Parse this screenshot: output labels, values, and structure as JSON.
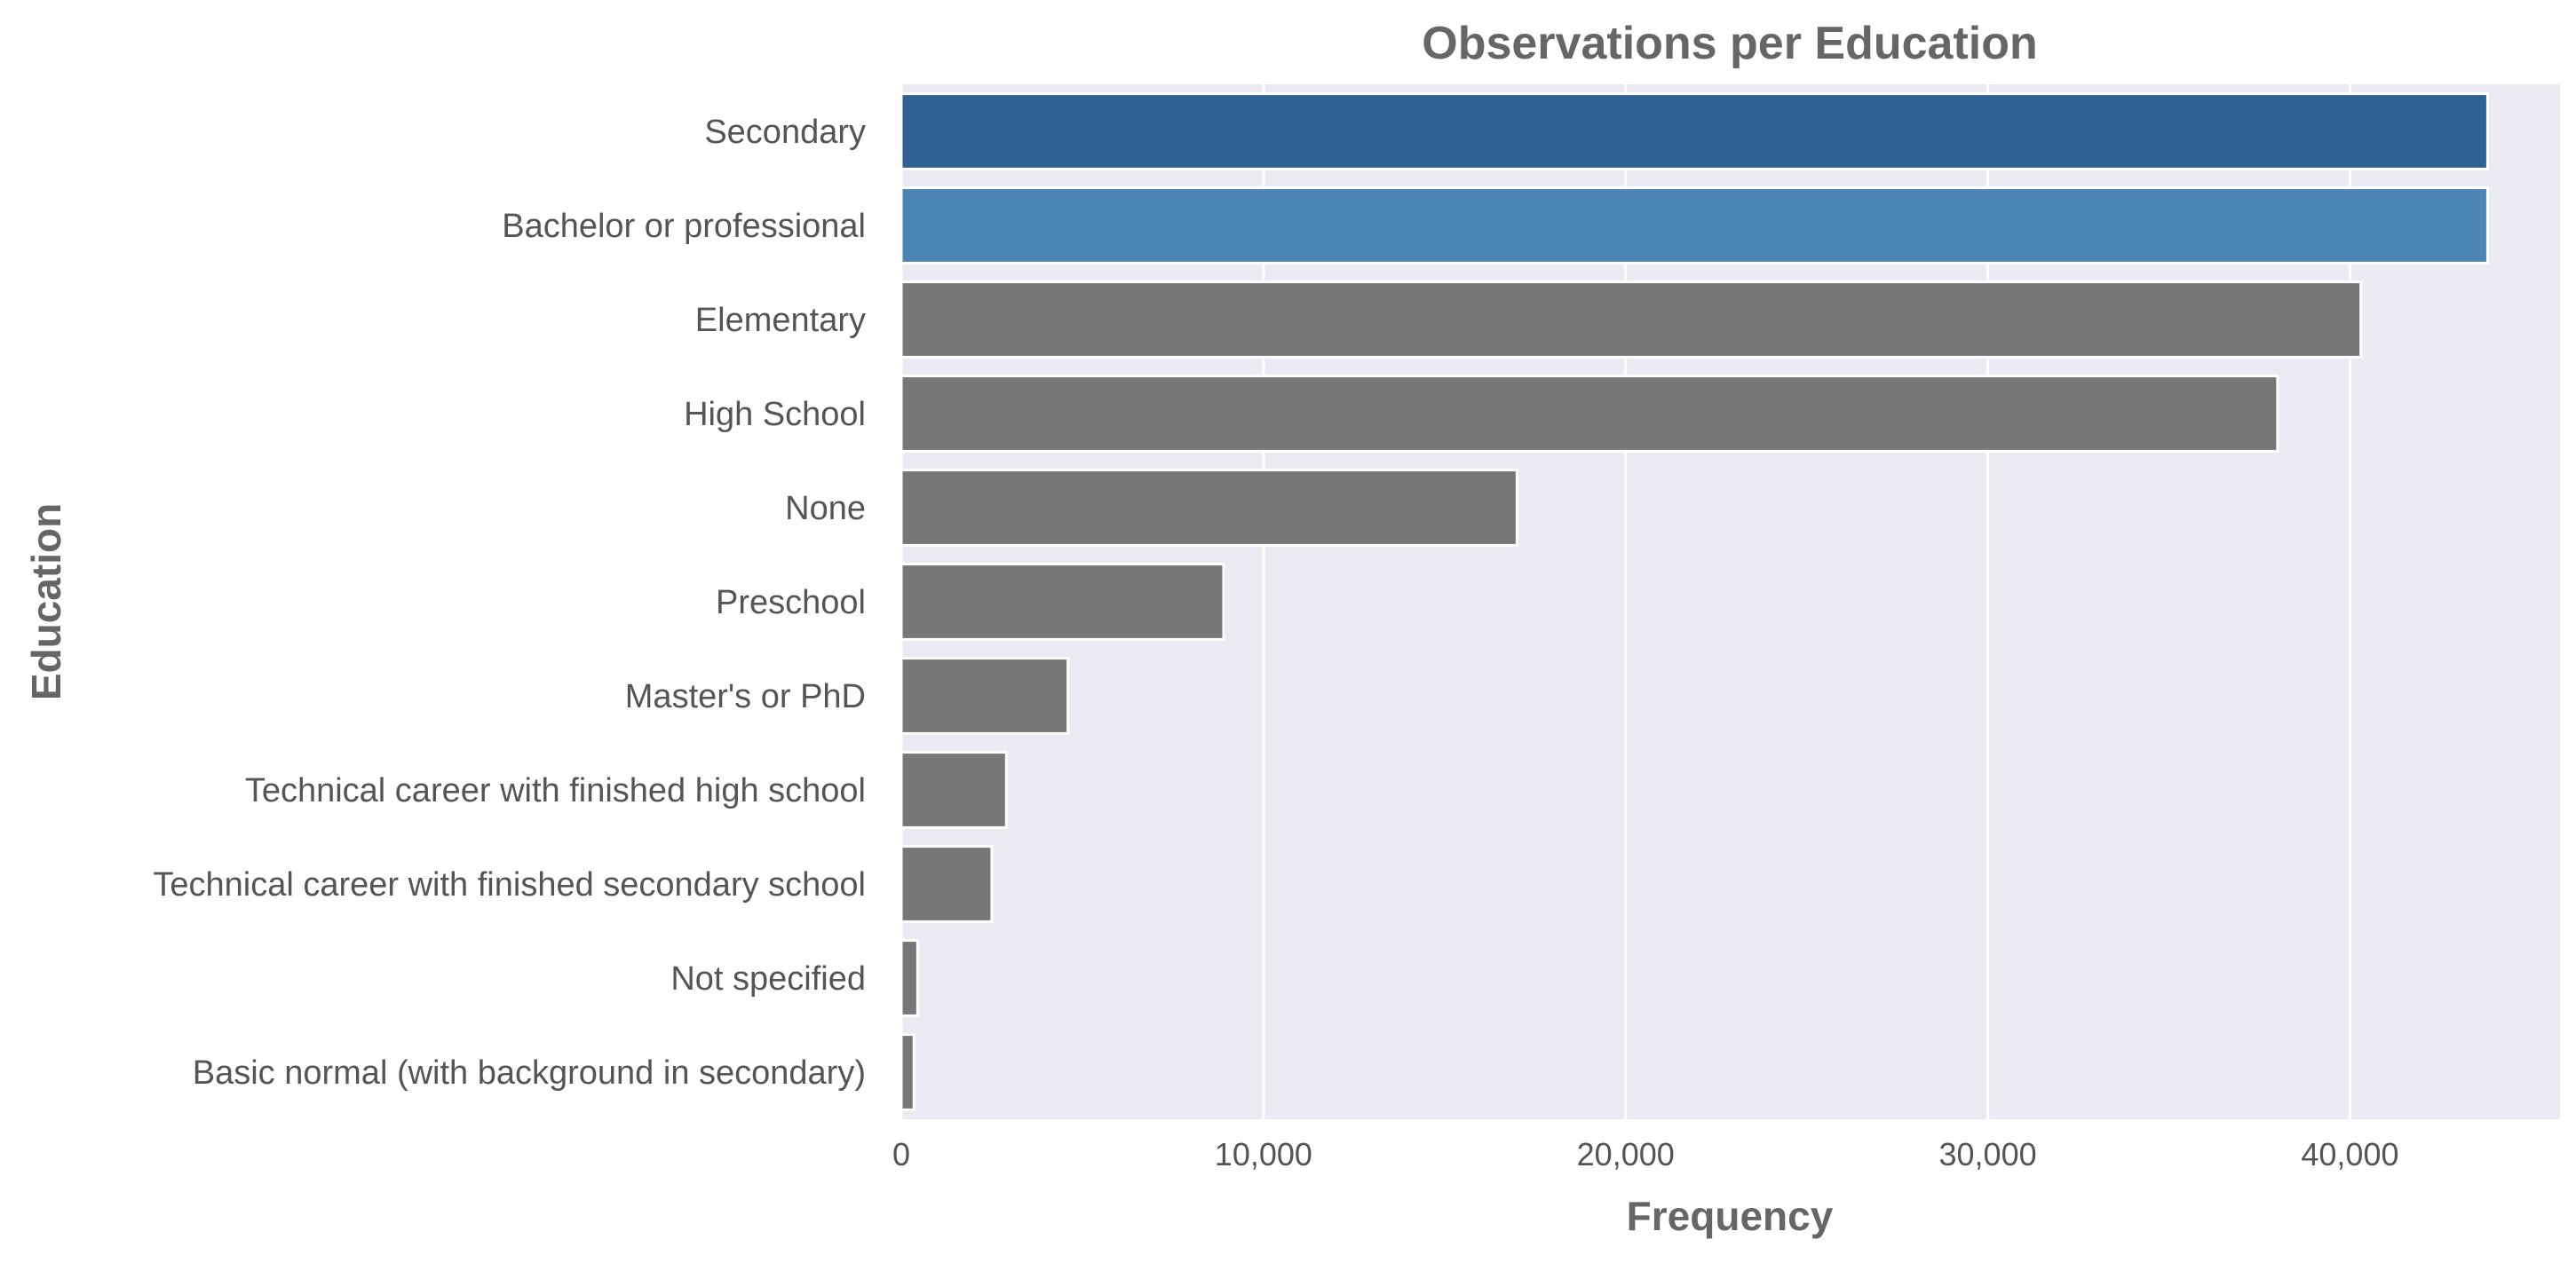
{
  "chart_data": {
    "type": "bar",
    "orientation": "horizontal",
    "title": "Observations per Education",
    "xlabel": "Frequency",
    "ylabel": "Education",
    "xlim": [
      0,
      45800
    ],
    "xticks": [
      0,
      10000,
      20000,
      30000,
      40000
    ],
    "xtick_labels": [
      "0",
      "10,000",
      "20,000",
      "30,000",
      "40,000"
    ],
    "grid": true,
    "categories": [
      "Secondary",
      "Bachelor or professional",
      "Elementary",
      "High School",
      "None",
      "Preschool",
      "Master's or PhD",
      "Technical career with finished high school",
      "Technical career with finished secondary school",
      "Not specified",
      "Basic normal (with background in secondary)"
    ],
    "values": [
      43800,
      43800,
      40300,
      38000,
      17000,
      8900,
      4600,
      2900,
      2500,
      450,
      350
    ],
    "colors": [
      "#2f6395",
      "#4a85b4",
      "#777777",
      "#777777",
      "#777777",
      "#777777",
      "#777777",
      "#777777",
      "#777777",
      "#777777",
      "#777777"
    ],
    "background": "#eaeaf2"
  }
}
